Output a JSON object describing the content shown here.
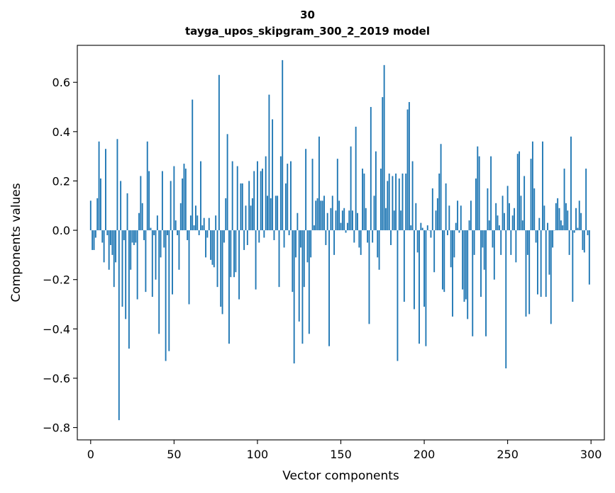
{
  "chart_data": {
    "type": "bar",
    "title_lines": [
      "30",
      "tayga_upos_skipgram_300_2_2019 model"
    ],
    "xlabel": "Vector components",
    "ylabel": "Components values",
    "xlim": [
      -8,
      308
    ],
    "ylim": [
      -0.85,
      0.75
    ],
    "xticks": [
      0,
      50,
      100,
      150,
      200,
      250,
      300
    ],
    "xtick_labels": [
      "0",
      "50",
      "100",
      "150",
      "200",
      "250",
      "300"
    ],
    "yticks": [
      -0.8,
      -0.6,
      -0.4,
      -0.2,
      0.0,
      0.2,
      0.4,
      0.6
    ],
    "ytick_labels": [
      "−0.8",
      "−0.6",
      "−0.4",
      "−0.2",
      "0.0",
      "0.2",
      "0.4",
      "0.6"
    ],
    "grid": false,
    "bar_color": "#1f77b4",
    "x": "0..299 (component index)",
    "values": [
      0.12,
      -0.08,
      -0.08,
      -0.03,
      0.13,
      0.36,
      0.21,
      -0.05,
      -0.13,
      0.33,
      -0.02,
      -0.16,
      -0.06,
      -0.1,
      -0.23,
      -0.13,
      0.37,
      -0.77,
      0.2,
      -0.31,
      -0.04,
      -0.36,
      0.15,
      -0.48,
      -0.16,
      -0.05,
      -0.06,
      -0.05,
      -0.28,
      0.07,
      0.22,
      0.11,
      -0.04,
      -0.25,
      0.36,
      0.24,
      0.01,
      -0.27,
      -0.02,
      -0.2,
      0.06,
      -0.42,
      -0.11,
      0.24,
      -0.07,
      -0.53,
      -0.02,
      -0.49,
      0.2,
      -0.26,
      0.26,
      0.04,
      -0.02,
      -0.16,
      0.11,
      0.21,
      0.27,
      0.25,
      -0.04,
      -0.3,
      0.06,
      0.53,
      0.02,
      0.1,
      0.06,
      -0.02,
      0.28,
      0.02,
      0.05,
      -0.11,
      -0.03,
      0.05,
      -0.12,
      -0.14,
      -0.15,
      0.06,
      -0.23,
      0.63,
      -0.31,
      -0.34,
      -0.05,
      0.13,
      0.39,
      -0.46,
      -0.19,
      0.28,
      -0.19,
      -0.17,
      0.26,
      -0.28,
      0.19,
      0.19,
      -0.08,
      0.1,
      -0.06,
      0.2,
      0.1,
      0.13,
      0.24,
      -0.24,
      0.28,
      -0.05,
      0.24,
      0.25,
      -0.03,
      0.3,
      0.14,
      0.55,
      0.13,
      0.45,
      -0.04,
      0.14,
      0.14,
      -0.23,
      0.3,
      0.69,
      -0.07,
      0.19,
      0.27,
      -0.02,
      0.28,
      -0.25,
      -0.54,
      -0.11,
      0.07,
      -0.37,
      -0.07,
      -0.46,
      -0.23,
      0.33,
      -0.13,
      -0.42,
      -0.11,
      0.29,
      0.02,
      0.12,
      0.13,
      0.38,
      0.12,
      0.12,
      0.14,
      -0.06,
      0.07,
      -0.47,
      0.09,
      0.14,
      -0.1,
      0.08,
      0.29,
      0.12,
      0.03,
      0.08,
      0.09,
      -0.01,
      0.03,
      0.08,
      0.34,
      0.08,
      -0.05,
      0.42,
      0.07,
      -0.07,
      -0.1,
      0.25,
      0.23,
      0.09,
      -0.05,
      -0.38,
      0.5,
      -0.05,
      0.14,
      0.32,
      -0.11,
      -0.16,
      0.25,
      0.54,
      0.67,
      0.09,
      0.2,
      0.23,
      -0.06,
      0.22,
      0.08,
      0.23,
      -0.53,
      0.21,
      0.08,
      0.23,
      -0.29,
      0.23,
      0.49,
      0.52,
      0.02,
      0.28,
      -0.32,
      0.11,
      -0.09,
      -0.46,
      0.03,
      0.01,
      -0.31,
      -0.47,
      0.02,
      0.0,
      -0.03,
      0.17,
      -0.17,
      0.08,
      0.13,
      0.23,
      0.35,
      -0.24,
      -0.25,
      0.19,
      -0.02,
      0.1,
      -0.15,
      -0.35,
      -0.11,
      0.03,
      0.12,
      -0.01,
      0.1,
      -0.24,
      -0.29,
      -0.28,
      -0.36,
      0.04,
      0.12,
      -0.43,
      -0.1,
      0.21,
      0.34,
      0.3,
      -0.27,
      -0.07,
      -0.16,
      -0.43,
      0.17,
      0.04,
      0.3,
      -0.07,
      -0.2,
      0.11,
      0.06,
      0.02,
      -0.1,
      0.14,
      0.07,
      -0.56,
      0.18,
      0.11,
      -0.1,
      0.06,
      0.09,
      -0.13,
      0.31,
      0.32,
      0.14,
      0.04,
      0.22,
      -0.35,
      -0.1,
      -0.34,
      0.29,
      0.36,
      0.17,
      -0.05,
      -0.26,
      0.05,
      -0.27,
      0.36,
      0.1,
      -0.27,
      0.03,
      -0.18,
      -0.38,
      -0.07,
      0.0,
      0.11,
      0.13,
      0.09,
      0.04,
      0.02,
      0.25,
      0.11,
      0.08,
      -0.1,
      0.38,
      -0.29,
      -0.01,
      0.09,
      0.01,
      0.12,
      0.07,
      -0.08,
      -0.09,
      0.25,
      -0.02,
      -0.22
    ]
  }
}
